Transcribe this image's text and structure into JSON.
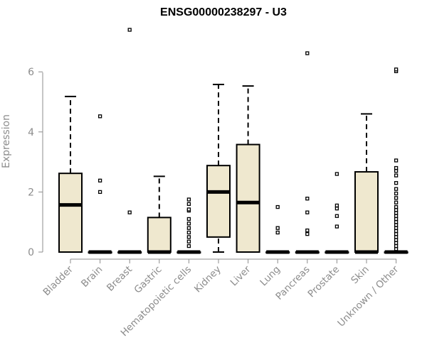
{
  "chart_data": {
    "type": "box",
    "title": "ENSG00000238297 - U3",
    "xlabel": "",
    "ylabel": "Expression",
    "ylim": [
      0,
      7.6
    ],
    "yticks": [
      0,
      2,
      4,
      6
    ],
    "grid": false,
    "colors": {
      "box_fill": "#efe8cf",
      "stroke": "#000000",
      "axis_text": "#8c8c8c"
    },
    "categories": [
      "Bladder",
      "Brain",
      "Breast",
      "Gastric",
      "Hematopoietic cells",
      "Kidney",
      "Liver",
      "Lung",
      "Pancreas",
      "Prostate",
      "Skin",
      "Unknown / Other"
    ],
    "boxes": [
      {
        "category": "Bladder",
        "q1": 0,
        "median": 1.57,
        "q3": 2.62,
        "whisker_low": 0,
        "whisker_high": 5.18,
        "outliers": []
      },
      {
        "category": "Brain",
        "q1": 0,
        "median": 0,
        "q3": 0,
        "whisker_low": 0,
        "whisker_high": 0,
        "outliers": [
          2.0,
          2.38,
          4.52
        ]
      },
      {
        "category": "Breast",
        "q1": 0,
        "median": 0,
        "q3": 0,
        "whisker_low": 0,
        "whisker_high": 0,
        "outliers": [
          1.32,
          7.4
        ]
      },
      {
        "category": "Gastric",
        "q1": 0,
        "median": 0,
        "q3": 1.15,
        "whisker_low": 0,
        "whisker_high": 2.52,
        "outliers": []
      },
      {
        "category": "Hematopoietic cells",
        "q1": 0,
        "median": 0,
        "q3": 0,
        "whisker_low": 0,
        "whisker_high": 0,
        "outliers": [
          0.2,
          0.35,
          0.5,
          0.65,
          0.8,
          0.95,
          1.1,
          1.38,
          1.42,
          1.6,
          1.75
        ]
      },
      {
        "category": "Kidney",
        "q1": 0.5,
        "median": 2.0,
        "q3": 2.88,
        "whisker_low": 0,
        "whisker_high": 5.58,
        "outliers": []
      },
      {
        "category": "Liver",
        "q1": 0,
        "median": 1.65,
        "q3": 3.58,
        "whisker_low": 0,
        "whisker_high": 5.53,
        "outliers": []
      },
      {
        "category": "Lung",
        "q1": 0,
        "median": 0,
        "q3": 0,
        "whisker_low": 0,
        "whisker_high": 0,
        "outliers": [
          0.65,
          0.8,
          1.5
        ]
      },
      {
        "category": "Pancreas",
        "q1": 0,
        "median": 0,
        "q3": 0,
        "whisker_low": 0,
        "whisker_high": 0,
        "outliers": [
          0.6,
          0.72,
          1.32,
          1.78,
          6.62
        ]
      },
      {
        "category": "Prostate",
        "q1": 0,
        "median": 0,
        "q3": 0,
        "whisker_low": 0,
        "whisker_high": 0,
        "outliers": [
          0.85,
          1.2,
          1.45,
          1.55,
          2.6
        ]
      },
      {
        "category": "Skin",
        "q1": 0,
        "median": 0,
        "q3": 2.67,
        "whisker_low": 0,
        "whisker_high": 4.6,
        "outliers": []
      },
      {
        "category": "Unknown / Other",
        "q1": 0,
        "median": 0,
        "q3": 0,
        "whisker_low": 0,
        "whisker_high": 0,
        "outliers": [
          0.1,
          0.2,
          0.3,
          0.4,
          0.5,
          0.6,
          0.7,
          0.8,
          0.9,
          1.0,
          1.1,
          1.2,
          1.3,
          1.4,
          1.5,
          1.65,
          1.8,
          1.95,
          2.1,
          2.3,
          2.55,
          2.7,
          2.8,
          3.05,
          6.02,
          6.08
        ]
      }
    ]
  }
}
